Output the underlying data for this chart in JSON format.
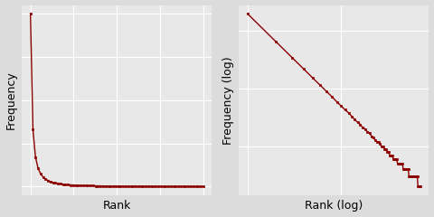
{
  "line_color": "#8B0000",
  "marker_color": "#8B0000",
  "bg_color": "#E8E8E8",
  "fig_bg_color": "#DCDCDC",
  "ylabel_left": "Frequency",
  "ylabel_right": "Frequency (log)",
  "xlabel_left": "Rank",
  "xlabel_right": "Rank (log)",
  "label_fontsize": 9,
  "n_points": 70,
  "zipf_alpha": 1.6,
  "max_freq": 2000,
  "marker_size": 2.0,
  "line_width": 1.0
}
